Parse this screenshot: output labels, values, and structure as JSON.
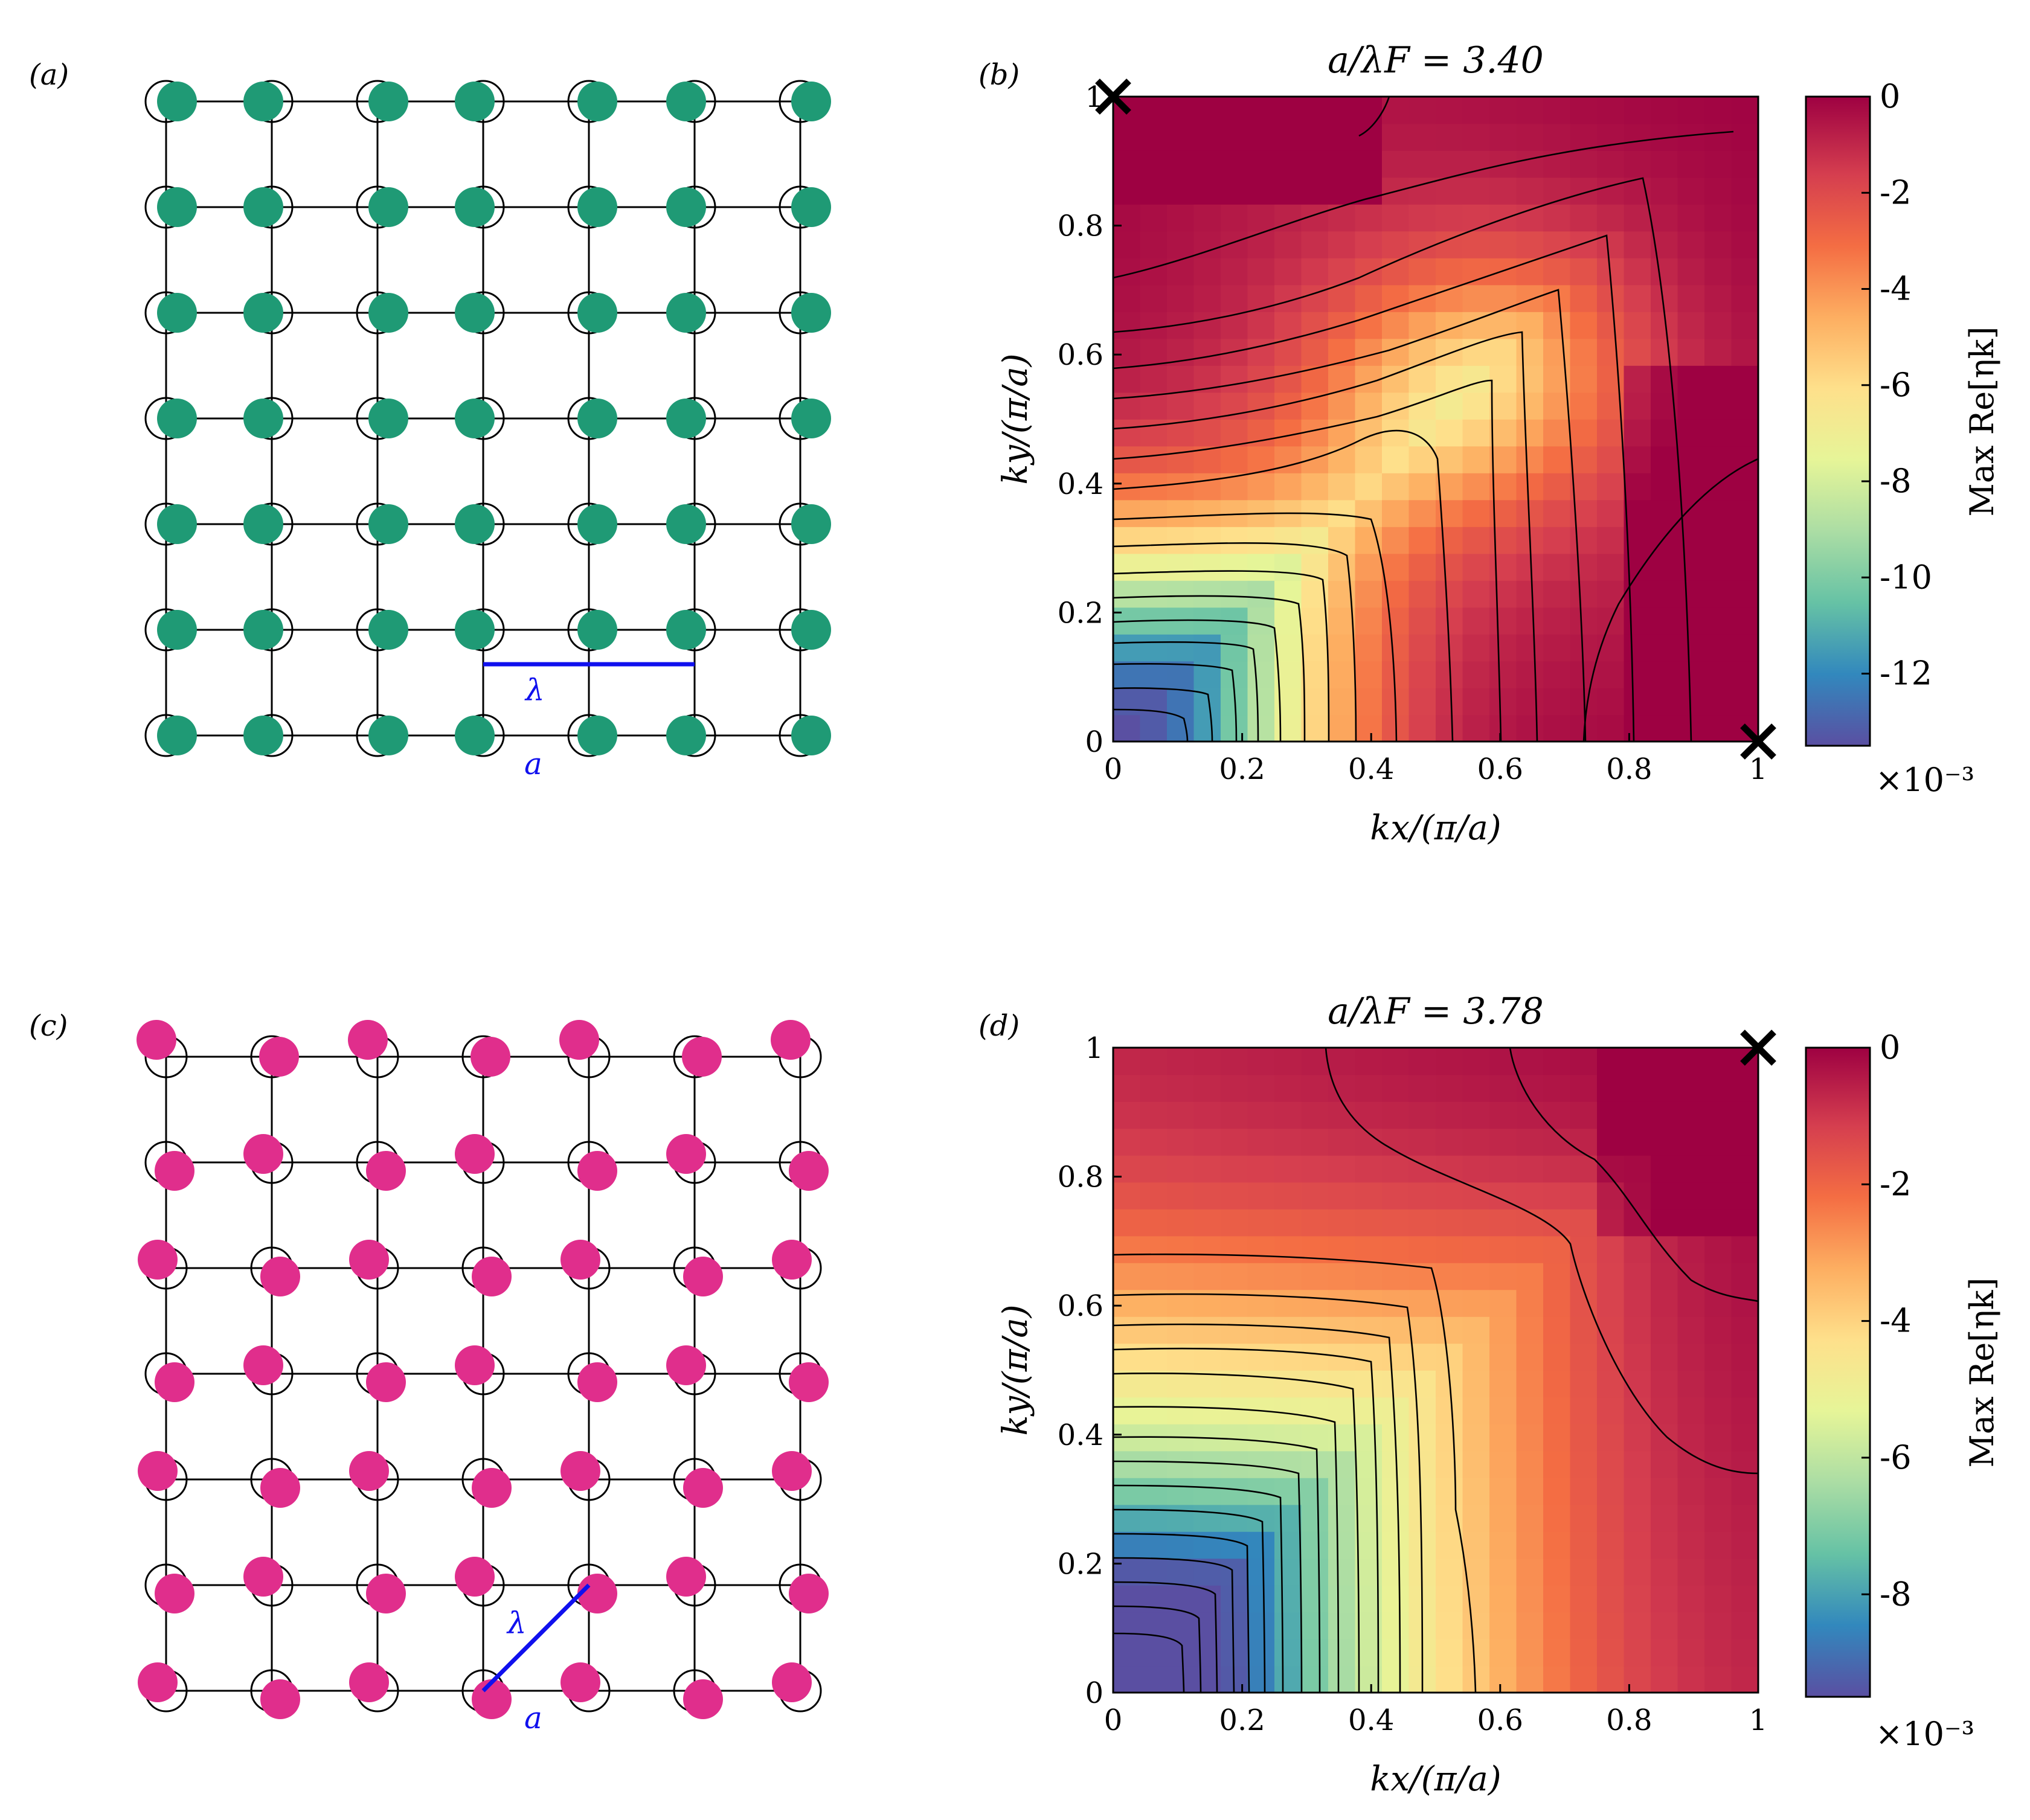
{
  "colors": {
    "green_particle": "#1f9a75",
    "pink_particle": "#e02e8c",
    "wavelength_line": "#1010ee",
    "grid": "#000000",
    "colormap": [
      "#5a4fa2",
      "#3288bd",
      "#66c2a5",
      "#abdda4",
      "#e6f598",
      "#fee08b",
      "#fdae61",
      "#f46d43",
      "#d53e4f",
      "#9e0142"
    ]
  },
  "panels": {
    "a": {
      "label": "(a)",
      "lambda": "λ",
      "a_label": "a"
    },
    "b": {
      "label": "(b)"
    },
    "c": {
      "label": "(c)",
      "lambda": "λ",
      "a_label": "a"
    },
    "d": {
      "label": "(d)"
    }
  },
  "chart_data": [
    {
      "panel": "b",
      "type": "heatmap",
      "title": "a/λF = 3.40",
      "xlabel": "kx/(π/a)",
      "ylabel": "ky/(π/a)",
      "xlim": [
        0,
        1
      ],
      "ylim": [
        0,
        1
      ],
      "xticks": [
        "0",
        "0.2",
        "0.4",
        "0.6",
        "0.8",
        "1"
      ],
      "yticks": [
        "0",
        "0.2",
        "0.4",
        "0.6",
        "0.8",
        "1"
      ],
      "colorbar": {
        "label": "Max Re[ηk]",
        "range": [
          -13.5,
          0
        ],
        "ticks": [
          "0",
          "-2",
          "-4",
          "-6",
          "-8",
          "-10",
          "-12"
        ],
        "exponent": "×10⁻³"
      },
      "markers": [
        {
          "kx": 0,
          "ky": 1,
          "symbol": "×"
        },
        {
          "kx": 1,
          "ky": 0,
          "symbol": "×"
        }
      ],
      "min_value": -13.5,
      "max_value": 0
    },
    {
      "panel": "d",
      "type": "heatmap",
      "title": "a/λF = 3.78",
      "xlabel": "kx/(π/a)",
      "ylabel": "ky/(π/a)",
      "xlim": [
        0,
        1
      ],
      "ylim": [
        0,
        1
      ],
      "xticks": [
        "0",
        "0.2",
        "0.4",
        "0.6",
        "0.8",
        "1"
      ],
      "yticks": [
        "0",
        "0.2",
        "0.4",
        "0.6",
        "0.8",
        "1"
      ],
      "colorbar": {
        "label": "Max Re[ηk]",
        "range": [
          -9.5,
          0
        ],
        "ticks": [
          "0",
          "-2",
          "-4",
          "-6",
          "-8"
        ],
        "exponent": "×10⁻³"
      },
      "markers": [
        {
          "kx": 1,
          "ky": 1,
          "symbol": "×"
        }
      ],
      "min_value": -9.5,
      "max_value": 0
    }
  ]
}
